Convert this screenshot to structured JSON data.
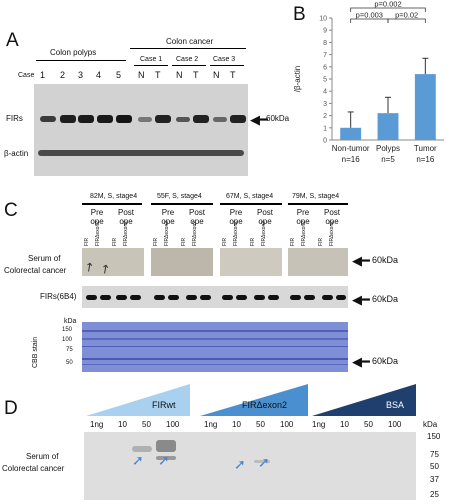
{
  "panelA": {
    "letter": "A",
    "group_polyps": "Colon polyps",
    "group_cancer": "Colon cancer",
    "case_word": "Case",
    "polyp_lanes": [
      "1",
      "2",
      "3",
      "4",
      "5"
    ],
    "cancer_cases": [
      "Case 1",
      "Case 2",
      "Case 3"
    ],
    "nt": [
      "N",
      "T",
      "N",
      "T",
      "N",
      "T"
    ],
    "row_firs": "FIRs",
    "row_actin": "β-actin",
    "marker": "60kDa"
  },
  "panelB": {
    "letter": "B",
    "chart_data": {
      "type": "bar",
      "categories": [
        "Non-tumor",
        "Polyps",
        "Tumor"
      ],
      "category_n": [
        "n=16",
        "n=5",
        "n=16"
      ],
      "values": [
        1.0,
        2.2,
        5.4
      ],
      "errors": [
        1.3,
        1.3,
        1.3
      ],
      "ylabel": "/β-actin",
      "ylim": [
        0,
        10
      ],
      "yticks": [
        0,
        1,
        2,
        3,
        4,
        5,
        6,
        7,
        8,
        9,
        10
      ],
      "bar_color": "#5b9bd5",
      "pvalues": [
        {
          "label": "p=0.002",
          "from": 0,
          "to": 2
        },
        {
          "label": "p=0.003",
          "from": 0,
          "to": 1
        },
        {
          "label": "p=0.02",
          "from": 1,
          "to": 2
        }
      ]
    }
  },
  "panelC": {
    "letter": "C",
    "patients": [
      "82M, S, stage4",
      "55F, S, stage4",
      "67M, S, stage4",
      "79M, S, stage4"
    ],
    "pre": "Pre",
    "post": "Post",
    "ope": "ope",
    "lane_fir": "FIR",
    "lane_firdex": "FIRΔexon2",
    "row_serum_1": "Serum of",
    "row_serum_2": "Colorectal cancer",
    "row_firs": "FIRs(6B4)",
    "row_cbb": "CBB stain",
    "kda": "kDa",
    "ladder": [
      "150",
      "100",
      "75",
      "50"
    ],
    "marker": "60kDa"
  },
  "panelD": {
    "letter": "D",
    "groups": [
      "FIRwt",
      "FIRΔexon2",
      "BSA"
    ],
    "doses": [
      "1ng",
      "10",
      "50",
      "100"
    ],
    "kda": "kDa",
    "ladder": [
      "150",
      "75",
      "50",
      "37",
      "25"
    ],
    "row_1": "Serum of",
    "row_2": "Colorectal cancer",
    "colors": {
      "wedge1": "#a9d0ee",
      "wedge2": "#4a8fcf",
      "wedge3": "#1f3f6e",
      "arrow": "#4a86c8"
    }
  }
}
